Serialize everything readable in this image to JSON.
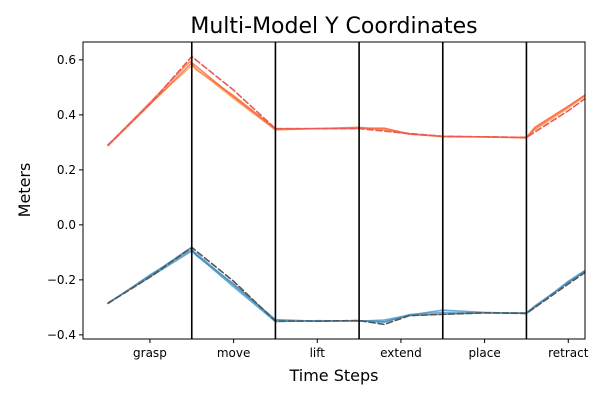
{
  "chart_data": {
    "type": "line",
    "title": "Multi-Model Y Coordinates",
    "xlabel": "Time Steps",
    "ylabel": "Meters",
    "ylim": [
      -0.415,
      0.665
    ],
    "yticks": [
      -0.4,
      -0.2,
      0.0,
      0.2,
      0.4,
      0.6
    ],
    "ytick_labels": [
      "−0.4",
      "−0.2",
      "0.0",
      "0.2",
      "0.4",
      "0.6"
    ],
    "xlim": [
      -0.3,
      5.7
    ],
    "phase_boundaries": [
      1,
      2,
      3,
      4,
      5
    ],
    "phases": [
      {
        "label": "grasp",
        "center": 0.5
      },
      {
        "label": "move",
        "center": 1.5
      },
      {
        "label": "lift",
        "center": 2.5
      },
      {
        "label": "extend",
        "center": 3.5
      },
      {
        "label": "place",
        "center": 4.5
      },
      {
        "label": "retract",
        "center": 5.5
      }
    ],
    "grid": false,
    "series": [
      {
        "color": "#ff6a1a",
        "dashed": false,
        "opacity": 0.75,
        "width": 1.5,
        "points": [
          [
            0,
            0.29
          ],
          [
            0.5,
            0.445
          ],
          [
            0.98,
            0.595
          ],
          [
            1.05,
            0.565
          ],
          [
            1.5,
            0.47
          ],
          [
            2,
            0.35
          ],
          [
            2.5,
            0.35
          ],
          [
            3,
            0.355
          ],
          [
            3.3,
            0.345
          ],
          [
            3.6,
            0.33
          ],
          [
            4,
            0.322
          ],
          [
            4.5,
            0.32
          ],
          [
            5,
            0.316
          ],
          [
            5.1,
            0.35
          ],
          [
            5.5,
            0.43
          ],
          [
            5.97,
            0.525
          ]
        ]
      },
      {
        "color": "#f7913d",
        "dashed": false,
        "opacity": 0.75,
        "width": 1.5,
        "points": [
          [
            0,
            0.292
          ],
          [
            0.5,
            0.44
          ],
          [
            1.0,
            0.58
          ],
          [
            1.5,
            0.46
          ],
          [
            2,
            0.345
          ],
          [
            2.5,
            0.35
          ],
          [
            3,
            0.35
          ],
          [
            3.3,
            0.35
          ],
          [
            3.6,
            0.332
          ],
          [
            4,
            0.32
          ],
          [
            4.5,
            0.32
          ],
          [
            5,
            0.318
          ],
          [
            5.1,
            0.345
          ],
          [
            5.5,
            0.425
          ],
          [
            5.97,
            0.527
          ]
        ]
      },
      {
        "color": "#ff5733",
        "dashed": false,
        "opacity": 0.75,
        "width": 1.5,
        "points": [
          [
            0,
            0.288
          ],
          [
            0.5,
            0.438
          ],
          [
            1.0,
            0.59
          ],
          [
            1.5,
            0.465
          ],
          [
            2,
            0.348
          ],
          [
            2.5,
            0.35
          ],
          [
            3,
            0.352
          ],
          [
            3.3,
            0.352
          ],
          [
            3.6,
            0.33
          ],
          [
            4,
            0.322
          ],
          [
            4.5,
            0.32
          ],
          [
            5,
            0.318
          ],
          [
            5.1,
            0.355
          ],
          [
            5.5,
            0.432
          ],
          [
            5.97,
            0.526
          ]
        ]
      },
      {
        "color": "#e85a5a",
        "dashed": true,
        "opacity": 1,
        "width": 1.6,
        "points": [
          [
            0,
            0.29
          ],
          [
            0.5,
            0.44
          ],
          [
            1,
            0.612
          ],
          [
            1.5,
            0.49
          ],
          [
            2,
            0.35
          ],
          [
            2.5,
            0.35
          ],
          [
            3,
            0.35
          ],
          [
            3.5,
            0.335
          ],
          [
            4,
            0.322
          ],
          [
            4.5,
            0.32
          ],
          [
            5,
            0.318
          ],
          [
            5.5,
            0.415
          ],
          [
            6,
            0.525
          ]
        ]
      },
      {
        "color": "#1f77b4",
        "dashed": false,
        "opacity": 0.75,
        "width": 1.5,
        "points": [
          [
            0,
            -0.285
          ],
          [
            0.5,
            -0.185
          ],
          [
            0.98,
            -0.085
          ],
          [
            1.05,
            -0.11
          ],
          [
            1.5,
            -0.215
          ],
          [
            2,
            -0.345
          ],
          [
            2.5,
            -0.35
          ],
          [
            3,
            -0.348
          ],
          [
            3.3,
            -0.352
          ],
          [
            3.6,
            -0.33
          ],
          [
            4,
            -0.325
          ],
          [
            4.5,
            -0.32
          ],
          [
            5,
            -0.32
          ],
          [
            5.1,
            -0.295
          ],
          [
            5.5,
            -0.21
          ],
          [
            5.97,
            -0.115
          ]
        ]
      },
      {
        "color": "#2f8fcc",
        "dashed": false,
        "opacity": 0.75,
        "width": 1.5,
        "points": [
          [
            0,
            -0.283
          ],
          [
            0.5,
            -0.19
          ],
          [
            1.0,
            -0.095
          ],
          [
            1.5,
            -0.225
          ],
          [
            2,
            -0.352
          ],
          [
            2.5,
            -0.348
          ],
          [
            3,
            -0.35
          ],
          [
            3.3,
            -0.346
          ],
          [
            3.6,
            -0.328
          ],
          [
            4,
            -0.31
          ],
          [
            4.5,
            -0.318
          ],
          [
            5,
            -0.322
          ],
          [
            5.1,
            -0.3
          ],
          [
            5.5,
            -0.205
          ],
          [
            5.97,
            -0.112
          ]
        ]
      },
      {
        "color": "#4a90b8",
        "dashed": false,
        "opacity": 0.75,
        "width": 1.5,
        "points": [
          [
            0,
            -0.286
          ],
          [
            0.5,
            -0.182
          ],
          [
            1.0,
            -0.09
          ],
          [
            1.5,
            -0.218
          ],
          [
            2,
            -0.348
          ],
          [
            2.5,
            -0.35
          ],
          [
            3,
            -0.349
          ],
          [
            3.3,
            -0.354
          ],
          [
            3.6,
            -0.326
          ],
          [
            4,
            -0.318
          ],
          [
            4.5,
            -0.32
          ],
          [
            5,
            -0.321
          ],
          [
            5.1,
            -0.298
          ],
          [
            5.5,
            -0.208
          ],
          [
            5.97,
            -0.114
          ]
        ]
      },
      {
        "color": "#555555",
        "dashed": true,
        "opacity": 1,
        "width": 1.6,
        "points": [
          [
            0,
            -0.285
          ],
          [
            0.5,
            -0.19
          ],
          [
            1,
            -0.082
          ],
          [
            1.5,
            -0.205
          ],
          [
            2,
            -0.35
          ],
          [
            2.5,
            -0.35
          ],
          [
            3,
            -0.348
          ],
          [
            3.3,
            -0.362
          ],
          [
            3.6,
            -0.33
          ],
          [
            4,
            -0.325
          ],
          [
            4.5,
            -0.32
          ],
          [
            5,
            -0.322
          ],
          [
            5.5,
            -0.215
          ],
          [
            6,
            -0.11
          ]
        ]
      }
    ]
  }
}
